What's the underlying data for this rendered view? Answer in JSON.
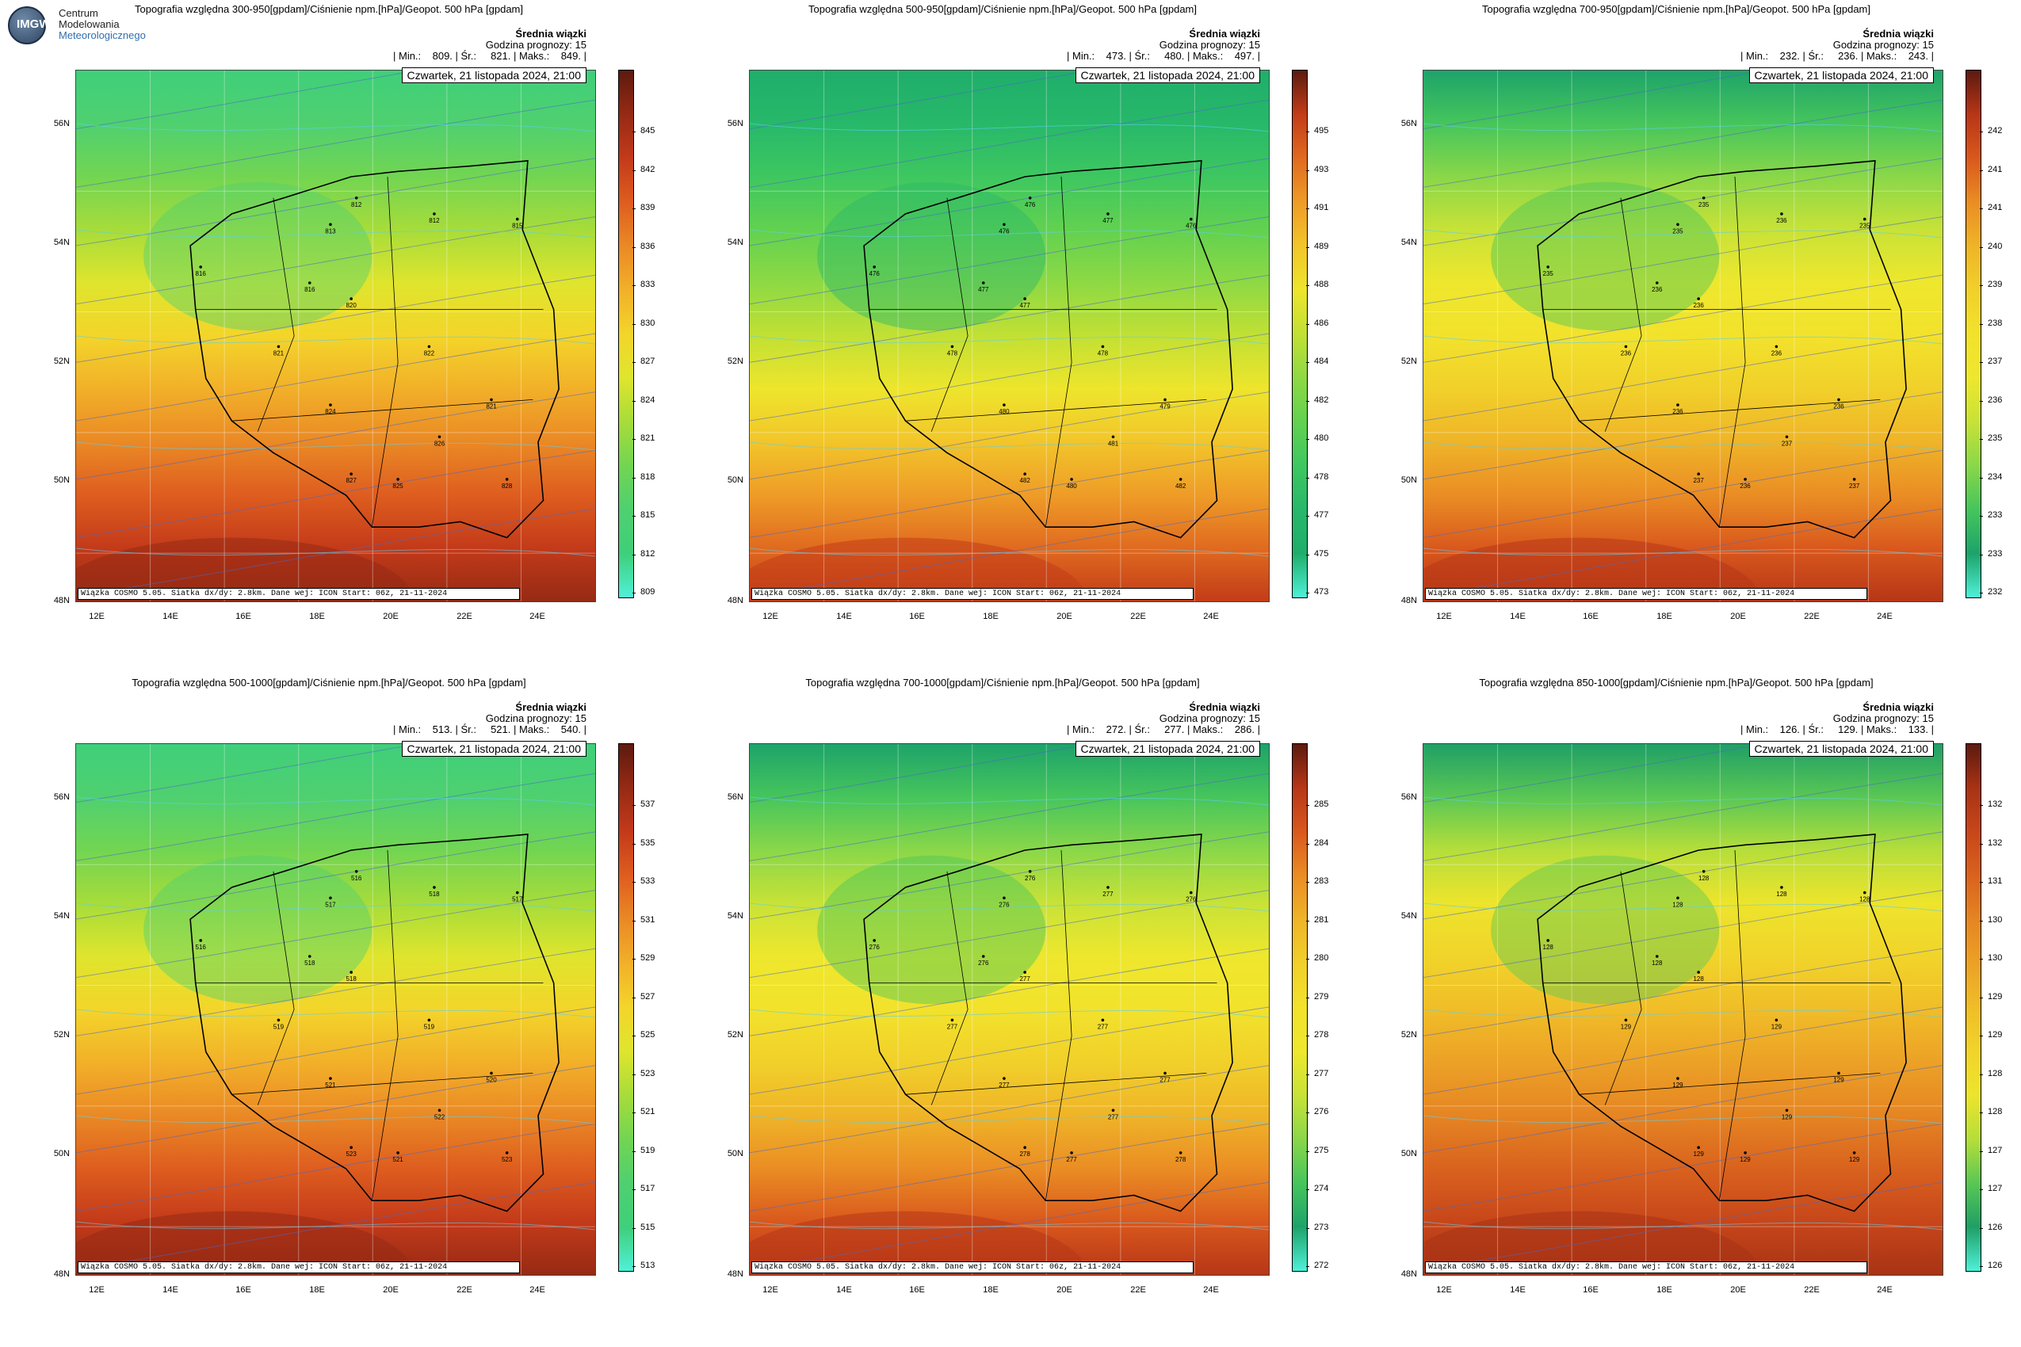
{
  "logo": {
    "badge": "IMGW",
    "line1": "Centrum",
    "line2": "Modelowania",
    "line3": "Meteorologicznego"
  },
  "common": {
    "subtitle": "Średnia wiązki",
    "forecast_hour": "Godzina prognozy: 15",
    "date": "Czwartek, 21 listopada 2024, 21:00",
    "footer": "Wiązka COSMO 5.05. Siatka dx/dy: 2.8km. Dane wej: ICON Start: 06z, 21-11-2024",
    "lat_labels": [
      "56N",
      "54N",
      "52N",
      "50N",
      "48N"
    ],
    "lon_labels": [
      "12E",
      "14E",
      "16E",
      "18E",
      "20E",
      "22E",
      "24E"
    ]
  },
  "panels": [
    {
      "title": "Topografia względna 300-950[gpdam]/Ciśnienie npm.[hPa]/Geopot. 500 hPa [gpdam]",
      "stats": "| Min.:    809. | Śr.:     821. | Maks.:    849. |",
      "colorbar": [
        "845",
        "842",
        "839",
        "836",
        "833",
        "830",
        "827",
        "824",
        "821",
        "818",
        "815",
        "812",
        "809"
      ],
      "scheme": "deep",
      "cities": [
        "812",
        "813",
        "812",
        "815",
        "816",
        "816",
        "820",
        "822",
        "821",
        "821",
        "824",
        "826",
        "827",
        "825",
        "828"
      ]
    },
    {
      "title": "Topografia względna 500-950[gpdam]/Ciśnienie npm.[hPa]/Geopot. 500 hPa [gpdam]",
      "stats": "| Min.:    473. | Śr.:     480. | Maks.:    497. |",
      "colorbar": [
        "495",
        "493",
        "491",
        "489",
        "488",
        "486",
        "484",
        "482",
        "480",
        "478",
        "477",
        "475",
        "473"
      ],
      "scheme": "green",
      "cities": [
        "476",
        "476",
        "477",
        "476",
        "476",
        "477",
        "477",
        "478",
        "479",
        "478",
        "480",
        "481",
        "482",
        "480",
        "482"
      ]
    },
    {
      "title": "Topografia względna 700-950[gpdam]/Ciśnienie npm.[hPa]/Geopot. 500 hPa [gpdam]",
      "stats": "| Min.:    232. | Śr.:     236. | Maks.:    243. |",
      "colorbar": [
        "242",
        "241",
        "241",
        "240",
        "239",
        "238",
        "237",
        "236",
        "235",
        "234",
        "233",
        "233",
        "232"
      ],
      "scheme": "yellow",
      "cities": [
        "235",
        "235",
        "236",
        "235",
        "235",
        "236",
        "236",
        "236",
        "236",
        "236",
        "236",
        "237",
        "237",
        "236",
        "237"
      ]
    },
    {
      "title": "Topografia względna 500-1000[gpdam]/Ciśnienie npm.[hPa]/Geopot. 500 hPa [gpdam]",
      "stats": "| Min.:    513. | Śr.:     521. | Maks.:    540. |",
      "colorbar": [
        "537",
        "535",
        "533",
        "531",
        "529",
        "527",
        "525",
        "523",
        "521",
        "519",
        "517",
        "515",
        "513"
      ],
      "scheme": "deep",
      "cities": [
        "516",
        "517",
        "518",
        "517",
        "516",
        "518",
        "518",
        "519",
        "520",
        "519",
        "521",
        "522",
        "523",
        "521",
        "523"
      ]
    },
    {
      "title": "Topografia względna 700-1000[gpdam]/Ciśnienie npm.[hPa]/Geopot. 500 hPa [gpdam]",
      "stats": "| Min.:    272. | Śr.:     277. | Maks.:    286. |",
      "colorbar": [
        "285",
        "284",
        "283",
        "281",
        "280",
        "279",
        "278",
        "277",
        "276",
        "275",
        "274",
        "273",
        "272"
      ],
      "scheme": "yellow",
      "cities": [
        "276",
        "276",
        "277",
        "276",
        "276",
        "276",
        "277",
        "277",
        "277",
        "277",
        "277",
        "277",
        "278",
        "277",
        "278"
      ]
    },
    {
      "title": "Topografia względna 850-1000[gpdam]/Ciśnienie npm.[hPa]/Geopot. 500 hPa [gpdam]",
      "stats": "| Min.:    126. | Śr.:     129. | Maks.:    133. |",
      "colorbar": [
        "132",
        "132",
        "131",
        "130",
        "130",
        "129",
        "129",
        "128",
        "128",
        "127",
        "127",
        "126",
        "126"
      ],
      "scheme": "orange",
      "cities": [
        "128",
        "128",
        "128",
        "128",
        "128",
        "128",
        "128",
        "129",
        "129",
        "129",
        "129",
        "129",
        "129",
        "129",
        "129"
      ]
    }
  ]
}
